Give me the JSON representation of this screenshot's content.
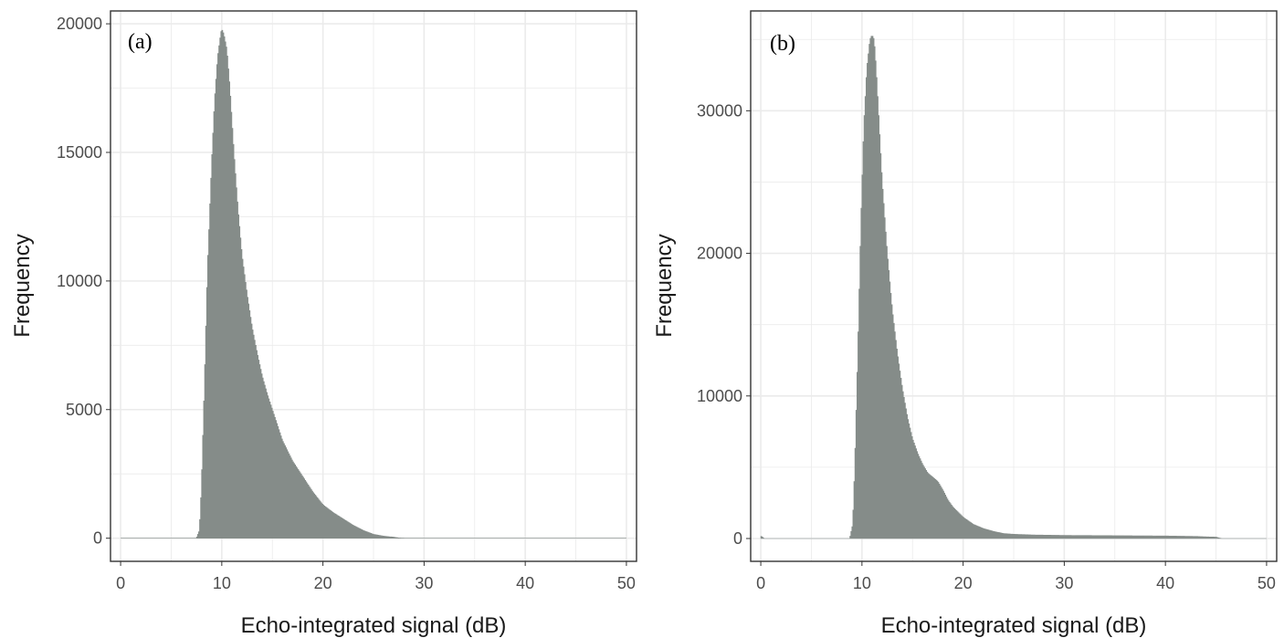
{
  "colors": {
    "bars": "#858c89",
    "panel_border": "#333333",
    "grid": "#ebebeb",
    "background": "#ffffff"
  },
  "chart_data": [
    {
      "type": "bar",
      "panel_label": "(a)",
      "xlabel": "Echo-integrated signal (dB)",
      "ylabel": "Frequency",
      "xlim": [
        -1,
        51
      ],
      "ylim": [
        -900,
        20500
      ],
      "x_ticks": [
        0,
        10,
        20,
        30,
        40,
        50
      ],
      "y_ticks": [
        0,
        5000,
        10000,
        15000,
        20000
      ],
      "grid": true,
      "bin_width": 0.1,
      "profile_x": [
        0,
        7.5,
        7.8,
        8.0,
        8.3,
        8.6,
        9.0,
        9.3,
        9.6,
        9.9,
        10.0,
        10.2,
        10.5,
        10.8,
        11.2,
        11.6,
        12.0,
        12.5,
        13.0,
        13.5,
        14.0,
        14.5,
        15.0,
        15.5,
        16.0,
        16.5,
        17.0,
        18.0,
        19.0,
        20.0,
        21.0,
        22.0,
        23.0,
        24.0,
        25.0,
        26.0,
        27.0,
        27.5,
        28.0,
        50.0
      ],
      "profile_y": [
        0,
        0,
        300,
        2000,
        6000,
        10500,
        14500,
        17000,
        18700,
        19600,
        19800,
        19600,
        19000,
        17500,
        15000,
        12800,
        11000,
        9500,
        8200,
        7200,
        6300,
        5600,
        5000,
        4400,
        3800,
        3400,
        3000,
        2400,
        1800,
        1300,
        1000,
        750,
        500,
        300,
        150,
        80,
        40,
        10,
        0,
        0
      ]
    },
    {
      "type": "bar",
      "panel_label": "(b)",
      "xlabel": "Echo-integrated signal (dB)",
      "ylabel": "Frequency",
      "xlim": [
        -1,
        51
      ],
      "ylim": [
        -1600,
        37000
      ],
      "x_ticks": [
        0,
        10,
        20,
        30,
        40,
        50
      ],
      "y_ticks": [
        0,
        10000,
        20000,
        30000
      ],
      "grid": true,
      "bin_width": 0.1,
      "profile_x": [
        0,
        0.1,
        0.3,
        8.8,
        9.1,
        9.3,
        9.6,
        9.9,
        10.2,
        10.5,
        10.8,
        11.0,
        11.2,
        11.4,
        11.7,
        12.0,
        12.5,
        13.0,
        13.5,
        14.0,
        14.5,
        15.0,
        15.5,
        16.0,
        16.5,
        17.0,
        17.5,
        18.0,
        18.5,
        19.0,
        20.0,
        21.0,
        22.0,
        23.0,
        24.0,
        25.0,
        27.0,
        30.0,
        35.0,
        40.0,
        43.0,
        44.0,
        45.0,
        45.5,
        50.0
      ],
      "profile_y": [
        150,
        150,
        0,
        0,
        1000,
        5000,
        13000,
        22000,
        29000,
        33000,
        35000,
        35300,
        35000,
        33000,
        29000,
        25000,
        20000,
        16000,
        13000,
        10500,
        8500,
        7000,
        6000,
        5200,
        4600,
        4300,
        4000,
        3400,
        2700,
        2200,
        1500,
        1000,
        700,
        500,
        350,
        300,
        250,
        220,
        200,
        180,
        150,
        120,
        100,
        0,
        0
      ]
    }
  ]
}
